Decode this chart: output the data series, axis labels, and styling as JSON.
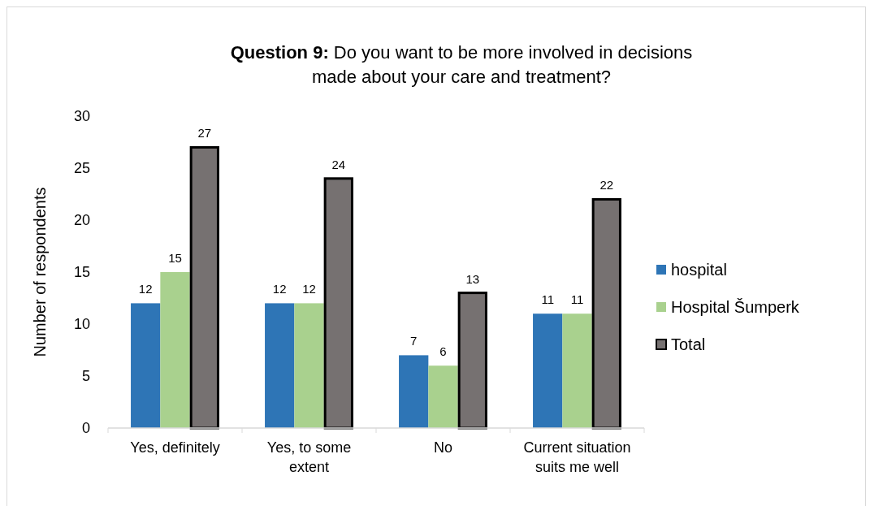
{
  "chart_data": {
    "type": "bar",
    "title": "Question 9: Do you want to be more involved in decisions made about your care and treatment?",
    "ylabel": "Number of respondents",
    "categories": [
      "Yes, definitely",
      "Yes, to some extent",
      "No",
      "Current situation suits me well"
    ],
    "series": [
      {
        "name": "hospital",
        "color": "#2e75b6",
        "values": [
          12,
          12,
          7,
          11
        ]
      },
      {
        "name": "Hospital Šumperk",
        "color": "#a9d18e",
        "values": [
          15,
          12,
          6,
          11
        ]
      },
      {
        "name": "Total",
        "color": "#767171",
        "values": [
          27,
          24,
          13,
          22
        ]
      }
    ],
    "ylim": [
      0,
      30
    ],
    "yticks": [
      0,
      5,
      10,
      15,
      20,
      25,
      30
    ],
    "grid": false,
    "legend": "right",
    "data_labels": true
  }
}
